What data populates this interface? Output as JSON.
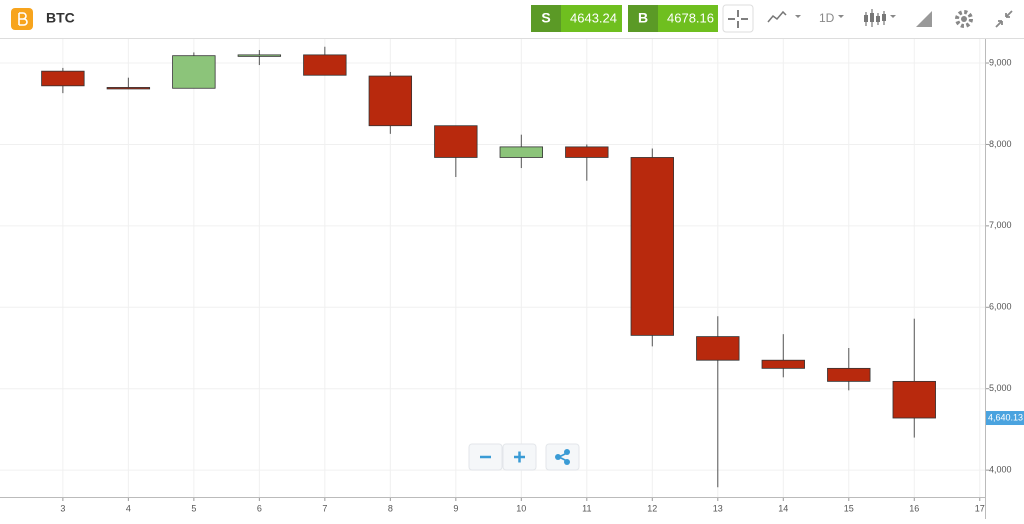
{
  "header": {
    "symbol": "BTC",
    "sell_label": "S",
    "sell_price": "4643.24",
    "buy_label": "B",
    "buy_price": "4678.16",
    "interval": "1D"
  },
  "chart_data": {
    "type": "candlestick",
    "x": [
      3,
      4,
      5,
      6,
      7,
      8,
      9,
      10,
      11,
      12,
      13,
      14,
      15,
      16
    ],
    "open": [
      8900,
      8700,
      8690,
      9090,
      9100,
      8840,
      8230,
      7840,
      7970,
      7840,
      5640,
      5350,
      5250,
      5090
    ],
    "high": [
      8940,
      8820,
      9130,
      9160,
      9200,
      8890,
      8230,
      8120,
      8000,
      7950,
      5890,
      5670,
      5500,
      5860
    ],
    "low": [
      8630,
      8680,
      8690,
      8975,
      8850,
      8130,
      7600,
      7710,
      7555,
      5520,
      3790,
      5140,
      4980,
      4400
    ],
    "close": [
      8720,
      8690,
      9090,
      9100,
      8850,
      8230,
      7840,
      7970,
      7840,
      5655,
      5350,
      5250,
      5090,
      4640
    ],
    "up_color": "#8cc47a",
    "down_color": "#b8290d",
    "xlim": [
      2.04,
      17.08
    ],
    "xticks": [
      3,
      4,
      5,
      6,
      7,
      8,
      9,
      10,
      11,
      12,
      13,
      14,
      15,
      16,
      17
    ],
    "ylim": [
      3670,
      9295
    ],
    "yticks": [
      {
        "value": 4000,
        "label": "4,000"
      },
      {
        "value": 5000,
        "label": "5,000"
      },
      {
        "value": 6000,
        "label": "6,000"
      },
      {
        "value": 7000,
        "label": "7,000"
      },
      {
        "value": 8000,
        "label": "8,000"
      },
      {
        "value": 9000,
        "label": "9,000"
      }
    ],
    "last_price": {
      "value": 4640.13,
      "label": "4,640.13"
    },
    "grid": true
  }
}
